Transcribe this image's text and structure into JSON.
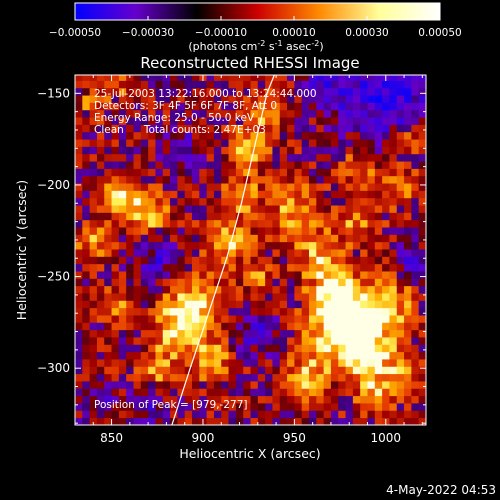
{
  "colorbar": {
    "tick_labels": [
      "-0.00050",
      "-0.00030",
      "-0.00010",
      "0.00010",
      "0.00030",
      "0.00050"
    ],
    "range": [
      -0.0005,
      0.0005
    ],
    "units_prefix": "(photons cm",
    "units_exp1": "-2",
    "units_mid1": " s",
    "units_exp2": "-1",
    "units_mid2": " asec",
    "units_exp3": "-2",
    "units_suffix": ")",
    "colors": [
      "#0000ff",
      "#6600cc",
      "#000000",
      "#cc0000",
      "#ff8800",
      "#ffff99",
      "#ffffff"
    ]
  },
  "chart_data": {
    "type": "heatmap",
    "title": "Reconstructed RHESSI Image",
    "xlabel": "Heliocentric X (arcsec)",
    "ylabel": "Heliocentric Y (arcsec)",
    "xlim": [
      830,
      1022
    ],
    "ylim": [
      -331,
      -140
    ],
    "x_ticks": [
      850,
      900,
      950,
      1000
    ],
    "y_ticks": [
      -150,
      -200,
      -250,
      -300
    ],
    "x_tick_labels": [
      "850",
      "900",
      "950",
      "1000"
    ],
    "y_tick_labels": [
      "-150",
      "-200",
      "-250",
      "-300"
    ],
    "annotations": [
      "25-Jul-2003 13:22:16.000 to 13:24:44.000",
      "Detectors: 3F 4F 5F 6F 7F 8F, Att 0",
      "Energy Range: 25.0 - 50.0 keV",
      "Clean      Total counts: 2.47E+03"
    ],
    "peak_label": "Position of Peak = [979,-277]",
    "peak": [
      979,
      -277
    ],
    "grid": false,
    "limb_curve": [
      [
        883,
        -331
      ],
      [
        893,
        -300
      ],
      [
        903,
        -270
      ],
      [
        913,
        -240
      ],
      [
        921,
        -210
      ],
      [
        928,
        -180
      ],
      [
        935,
        -150
      ],
      [
        939,
        -140
      ]
    ],
    "hotspots": [
      {
        "x": 979,
        "y": -277,
        "r": 14,
        "v": 1.0
      },
      {
        "x": 974,
        "y": -260,
        "r": 10,
        "v": 0.55
      },
      {
        "x": 990,
        "y": -295,
        "r": 10,
        "v": 0.6
      },
      {
        "x": 1003,
        "y": -265,
        "r": 9,
        "v": 0.5
      },
      {
        "x": 956,
        "y": -305,
        "r": 8,
        "v": 0.6
      },
      {
        "x": 995,
        "y": -315,
        "r": 7,
        "v": 0.5
      },
      {
        "x": 1010,
        "y": -300,
        "r": 6,
        "v": 0.5
      },
      {
        "x": 895,
        "y": -265,
        "r": 10,
        "v": 0.75
      },
      {
        "x": 885,
        "y": -280,
        "r": 9,
        "v": 0.6
      },
      {
        "x": 905,
        "y": -295,
        "r": 8,
        "v": 0.55
      },
      {
        "x": 875,
        "y": -300,
        "r": 7,
        "v": 0.5
      },
      {
        "x": 855,
        "y": -205,
        "r": 7,
        "v": 0.75
      },
      {
        "x": 870,
        "y": -215,
        "r": 8,
        "v": 0.6
      },
      {
        "x": 840,
        "y": -230,
        "r": 7,
        "v": 0.5
      },
      {
        "x": 852,
        "y": -265,
        "r": 6,
        "v": 0.45
      },
      {
        "x": 912,
        "y": -230,
        "r": 9,
        "v": 0.6
      },
      {
        "x": 920,
        "y": -205,
        "r": 7,
        "v": 0.55
      },
      {
        "x": 925,
        "y": -180,
        "r": 7,
        "v": 0.75
      },
      {
        "x": 935,
        "y": -160,
        "r": 8,
        "v": 0.45
      },
      {
        "x": 950,
        "y": -215,
        "r": 12,
        "v": 0.45
      },
      {
        "x": 965,
        "y": -240,
        "r": 9,
        "v": 0.5
      },
      {
        "x": 985,
        "y": -220,
        "r": 7,
        "v": 0.45
      },
      {
        "x": 1005,
        "y": -200,
        "r": 8,
        "v": 0.45
      },
      {
        "x": 1012,
        "y": -175,
        "r": 6,
        "v": 0.4
      },
      {
        "x": 985,
        "y": -190,
        "r": 6,
        "v": 0.4
      },
      {
        "x": 930,
        "y": -252,
        "r": 6,
        "v": 0.4
      },
      {
        "x": 840,
        "y": -155,
        "r": 5,
        "v": 0.45
      },
      {
        "x": 852,
        "y": -145,
        "r": 5,
        "v": 0.4
      }
    ],
    "cold_spots": [
      {
        "x": 1000,
        "y": -150,
        "r": 18,
        "v": -0.6
      },
      {
        "x": 965,
        "y": -148,
        "r": 9,
        "v": -0.35
      },
      {
        "x": 875,
        "y": -240,
        "r": 9,
        "v": -0.4
      },
      {
        "x": 930,
        "y": -280,
        "r": 10,
        "v": -0.35
      },
      {
        "x": 870,
        "y": -320,
        "r": 8,
        "v": -0.35
      },
      {
        "x": 1015,
        "y": -240,
        "r": 7,
        "v": -0.35
      },
      {
        "x": 845,
        "y": -320,
        "r": 6,
        "v": -0.3
      },
      {
        "x": 888,
        "y": -180,
        "r": 8,
        "v": -0.35
      }
    ]
  },
  "footer": {
    "date": "4-May-2022 04:53"
  }
}
